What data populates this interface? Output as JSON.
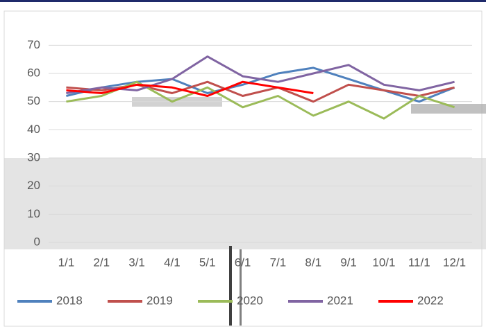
{
  "chart_data": {
    "type": "line",
    "categories": [
      "1/1",
      "2/1",
      "3/1",
      "4/1",
      "5/1",
      "6/1",
      "7/1",
      "8/1",
      "9/1",
      "10/1",
      "11/1",
      "12/1"
    ],
    "series": [
      {
        "name": "2018",
        "color": "#4f81bd",
        "values": [
          52,
          55,
          57,
          58,
          53,
          56,
          60,
          62,
          58,
          54,
          50,
          55
        ]
      },
      {
        "name": "2019",
        "color": "#c0504d",
        "values": [
          55,
          54,
          56,
          53,
          57,
          52,
          55,
          50,
          56,
          54,
          52,
          55
        ]
      },
      {
        "name": "2020",
        "color": "#9bbb59",
        "values": [
          50,
          52,
          57,
          50,
          55,
          48,
          52,
          45,
          50,
          44,
          52,
          48
        ]
      },
      {
        "name": "2021",
        "color": "#8064a2",
        "values": [
          53,
          55,
          54,
          58,
          66,
          59,
          57,
          60,
          63,
          56,
          54,
          57
        ]
      },
      {
        "name": "2022",
        "color": "#ff0000",
        "values": [
          54,
          53,
          56,
          55,
          52,
          57,
          55,
          53,
          null,
          null,
          null,
          null
        ]
      }
    ],
    "ylim": [
      0,
      75
    ],
    "yticks": [
      0,
      10,
      20,
      30,
      40,
      50,
      60,
      70
    ],
    "grid": true,
    "legend": "bottom"
  }
}
